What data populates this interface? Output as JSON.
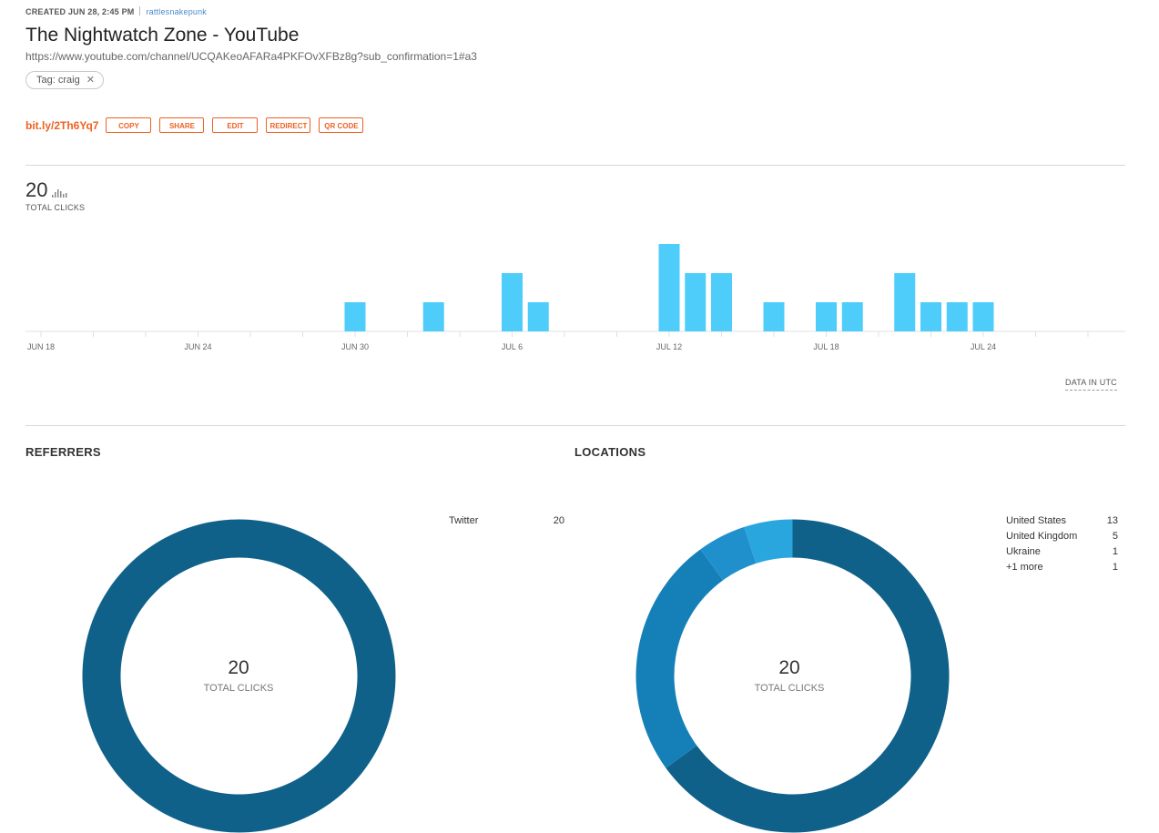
{
  "header": {
    "created": "CREATED JUN 28, 2:45 PM",
    "user": "rattlesnakepunk",
    "title": "The Nightwatch Zone - YouTube",
    "url": "https://www.youtube.com/channel/UCQAKeoAFARa4PKFOvXFBz8g?sub_confirmation=1#a3",
    "tag": "Tag: craig"
  },
  "actions": {
    "shortlink": "bit.ly/2Th6Yq7",
    "copy": "COPY",
    "share": "SHARE",
    "edit": "EDIT",
    "redirect": "REDIRECT",
    "qr": "QR CODE"
  },
  "summary": {
    "total": "20",
    "total_label": "TOTAL CLICKS",
    "utc_label": "DATA IN UTC"
  },
  "chart_data": {
    "type": "bar",
    "x": [
      "JUN 18",
      "JUN 19",
      "JUN 20",
      "JUN 21",
      "JUN 22",
      "JUN 23",
      "JUN 24",
      "JUN 25",
      "JUN 26",
      "JUN 27",
      "JUN 28",
      "JUN 29",
      "JUN 30",
      "JUL 1",
      "JUL 2",
      "JUL 3",
      "JUL 4",
      "JUL 5",
      "JUL 6",
      "JUL 7",
      "JUL 8",
      "JUL 9",
      "JUL 10",
      "JUL 11",
      "JUL 12",
      "JUL 13",
      "JUL 14",
      "JUL 15",
      "JUL 16",
      "JUL 17",
      "JUL 18",
      "JUL 19",
      "JUL 20",
      "JUL 21",
      "JUL 22",
      "JUL 23",
      "JUL 24",
      "JUL 25",
      "JUL 26",
      "JUL 27",
      "JUL 28",
      "JUL 29",
      "JUL 30"
    ],
    "values": [
      0,
      0,
      0,
      0,
      0,
      0,
      0,
      0,
      0,
      0,
      0,
      0,
      1,
      0,
      0,
      1,
      0,
      0,
      2,
      1,
      0,
      0,
      0,
      0,
      3,
      2,
      2,
      0,
      1,
      0,
      1,
      1,
      0,
      2,
      1,
      1,
      1,
      0,
      0,
      0,
      0,
      0,
      0
    ],
    "tick_labels": [
      "JUN 18",
      "JUN 24",
      "JUN 30",
      "JUL 6",
      "JUL 12",
      "JUL 18",
      "JUL 24"
    ],
    "ylim": [
      0,
      3
    ],
    "color": "#4ecdfa"
  },
  "referrers": {
    "title": "REFERRERS",
    "items": [
      {
        "name": "Twitter",
        "count": "20",
        "value": 20,
        "color": "#10618a"
      }
    ],
    "center_value": "20",
    "center_label": "TOTAL CLICKS"
  },
  "locations": {
    "title": "LOCATIONS",
    "items": [
      {
        "name": "United States",
        "count": "13",
        "value": 13,
        "color": "#10618a"
      },
      {
        "name": "United Kingdom",
        "count": "5",
        "value": 5,
        "color": "#1580b8"
      },
      {
        "name": "Ukraine",
        "count": "1",
        "value": 1,
        "color": "#2090cc"
      },
      {
        "name": "+1 more",
        "count": "1",
        "value": 1,
        "color": "#2aa6df"
      }
    ],
    "center_value": "20",
    "center_label": "TOTAL CLICKS"
  }
}
